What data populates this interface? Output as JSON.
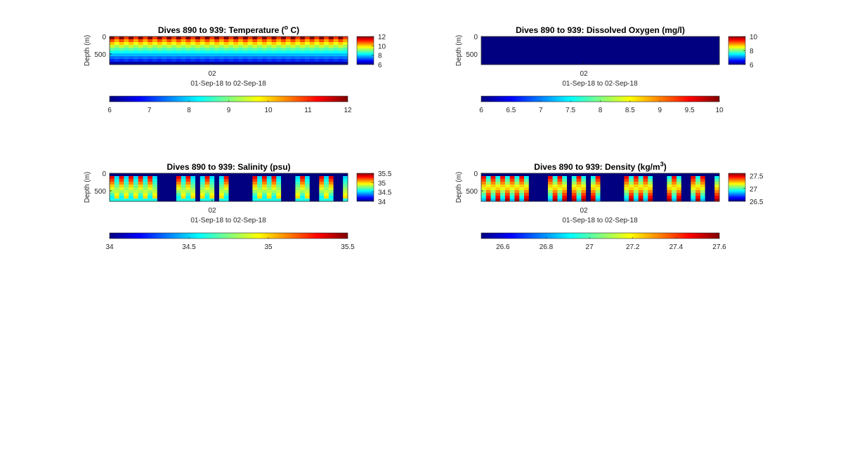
{
  "chart_data": [
    {
      "type": "heatmap",
      "title": "Dives 890 to 939: Temperature (",
      "title_sup": "o",
      "title_suffix": " C)",
      "ylabel": "Depth (m)",
      "yticks": [
        "0",
        "500"
      ],
      "ylim": [
        0,
        800
      ],
      "xtick": "02",
      "xlabel": "01-Sep-18 to 02-Sep-18",
      "colormap": "jet",
      "clim": [
        6,
        12
      ],
      "colorbar_ticks": [
        "6",
        "8",
        "10",
        "12"
      ],
      "h_colorbar_ticks": [
        "6",
        "7",
        "8",
        "9",
        "10",
        "11",
        "12"
      ],
      "dives": 50,
      "profile": "temperature",
      "surface_value": 12,
      "deep_value": 6.5
    },
    {
      "type": "heatmap",
      "title": "Dives 890 to 939: Dissolved Oxygen (mg/l)",
      "title_sup": "",
      "title_suffix": "",
      "ylabel": "Depth (m)",
      "yticks": [
        "0",
        "500"
      ],
      "ylim": [
        0,
        800
      ],
      "xtick": "02",
      "xlabel": "01-Sep-18 to 02-Sep-18",
      "colormap": "jet",
      "clim": [
        6,
        10
      ],
      "colorbar_ticks": [
        "6",
        "8",
        "10"
      ],
      "h_colorbar_ticks": [
        "6",
        "6.5",
        "7",
        "7.5",
        "8",
        "8.5",
        "9",
        "9.5",
        "10"
      ],
      "dives": 50,
      "profile": "uniform",
      "uniform_value": 6
    },
    {
      "type": "heatmap",
      "title": "Dives 890 to 939: Salinity (psu)",
      "title_sup": "",
      "title_suffix": "",
      "ylabel": "Depth (m)",
      "yticks": [
        "0",
        "500"
      ],
      "ylim": [
        0,
        800
      ],
      "xtick": "02",
      "xlabel": "01-Sep-18 to 02-Sep-18",
      "colormap": "jet",
      "clim": [
        34,
        35.5
      ],
      "colorbar_ticks": [
        "34",
        "34.5",
        "35",
        "35.5"
      ],
      "h_colorbar_ticks": [
        "34",
        "34.5",
        "35",
        "35.5"
      ],
      "dives": 50,
      "profile": "salinity",
      "missing_dives": [
        10,
        11,
        12,
        13,
        18,
        22,
        25,
        26,
        27,
        28,
        29,
        36,
        37,
        38,
        42,
        43,
        47,
        48
      ],
      "background_value": 34
    },
    {
      "type": "heatmap",
      "title": "Dives 890 to 939: Density (kg/m",
      "title_sup": "3",
      "title_suffix": ")",
      "ylabel": "Depth (m)",
      "yticks": [
        "0",
        "500"
      ],
      "ylim": [
        0,
        800
      ],
      "xtick": "02",
      "xlabel": "01-Sep-18 to 02-Sep-18",
      "colormap": "jet",
      "clim": [
        26.5,
        27.6
      ],
      "colorbar_ticks": [
        "26.5",
        "27",
        "27.5"
      ],
      "h_colorbar_ticks": [
        "26.6",
        "26.8",
        "27",
        "27.2",
        "27.4",
        "27.6"
      ],
      "dives": 50,
      "profile": "density",
      "missing_dives": [
        10,
        11,
        12,
        13,
        18,
        22,
        25,
        26,
        27,
        28,
        29,
        36,
        37,
        38,
        42,
        43,
        47,
        48
      ],
      "background_value": 26.5
    }
  ]
}
